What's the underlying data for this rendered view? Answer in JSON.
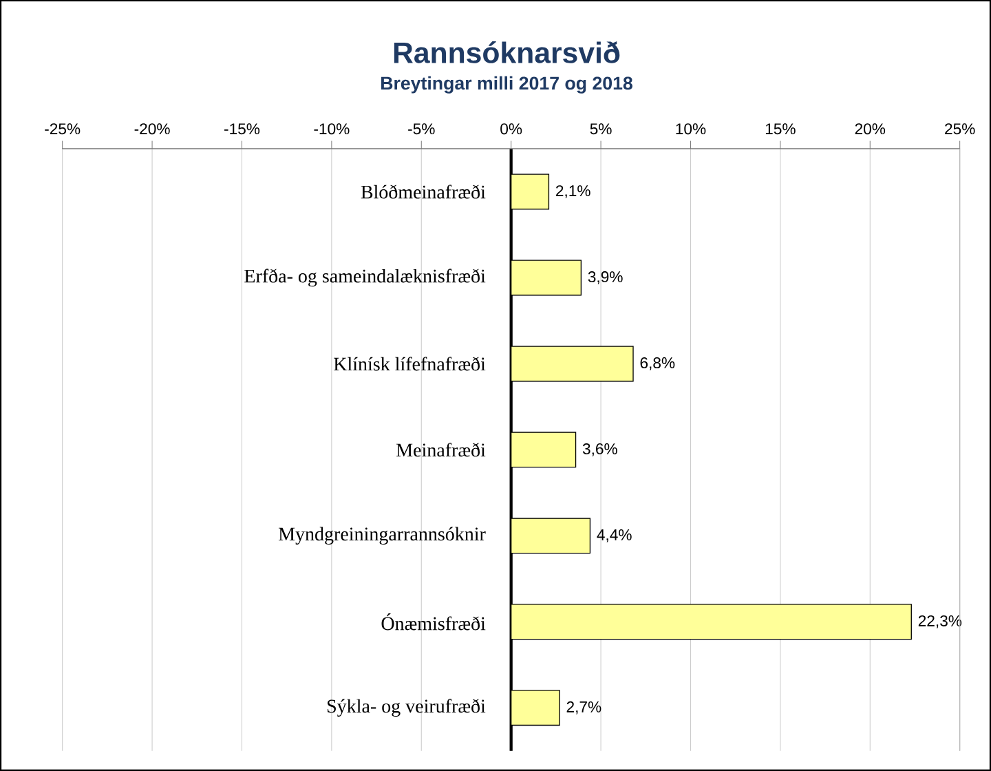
{
  "chart_data": {
    "type": "bar",
    "orientation": "horizontal",
    "title": "Rannsóknarsvið",
    "subtitle": "Breytingar milli 2017 og 2018",
    "categories": [
      "Blóðmeinafræði",
      "Erfða- og sameindalæknisfræði",
      "Klínísk lífefnafræði",
      "Meinafræði",
      "Myndgreiningarrannsóknir",
      "Ónæmisfræði",
      "Sýkla- og veirufræði"
    ],
    "values": [
      2.1,
      3.9,
      6.8,
      3.6,
      4.4,
      22.3,
      2.7
    ],
    "value_labels": [
      "2,1%",
      "3,9%",
      "6,8%",
      "3,6%",
      "4,4%",
      "22,3%",
      "2,7%"
    ],
    "color": "#ffff99",
    "xlim": [
      -25,
      25
    ],
    "xticks": [
      {
        "value": -25,
        "label": "-25%"
      },
      {
        "value": -20,
        "label": "-20%"
      },
      {
        "value": -15,
        "label": "-15%"
      },
      {
        "value": -10,
        "label": "-10%"
      },
      {
        "value": -5,
        "label": "-5%"
      },
      {
        "value": 0,
        "label": "0%"
      },
      {
        "value": 5,
        "label": "5%"
      },
      {
        "value": 10,
        "label": "10%"
      },
      {
        "value": 15,
        "label": "15%"
      },
      {
        "value": 20,
        "label": "20%"
      },
      {
        "value": 25,
        "label": "25%"
      }
    ],
    "grid": "x"
  }
}
